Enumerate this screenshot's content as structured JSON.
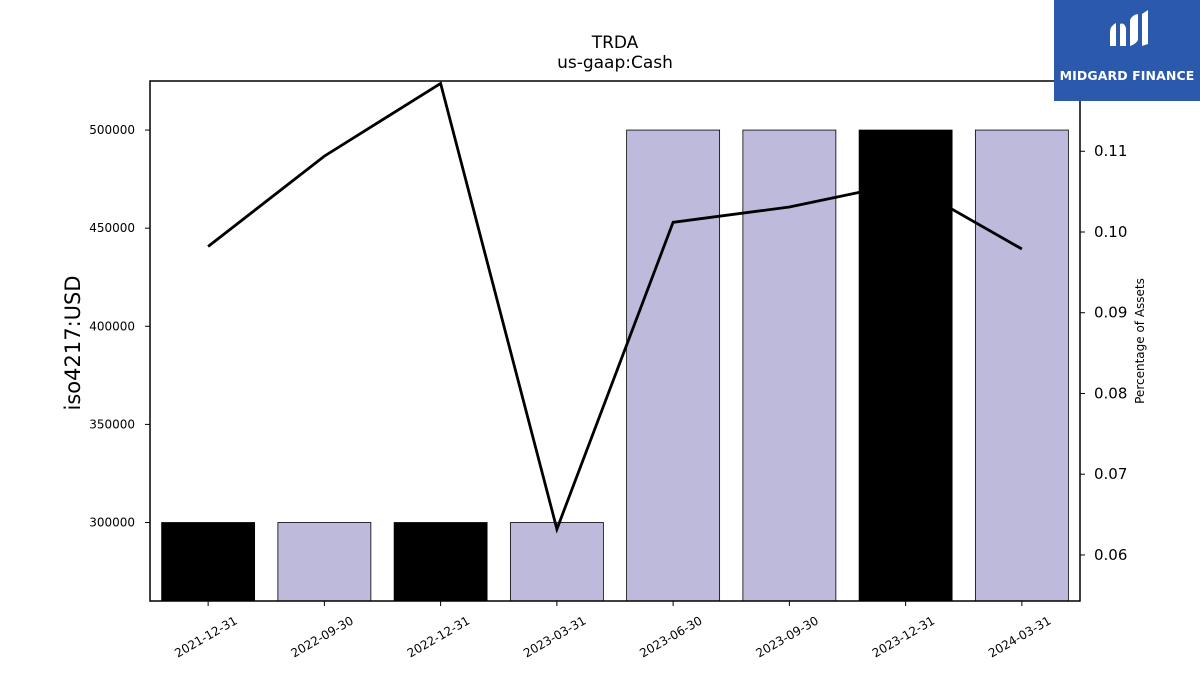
{
  "chart_data": {
    "type": "bar",
    "title": "TRDA",
    "subtitle": "us-gaap:Cash",
    "ylabel": "iso4217:USD",
    "y2label": "Percentage of Assets",
    "categories": [
      "2021-12-31",
      "2022-09-30",
      "2022-12-31",
      "2023-03-31",
      "2023-06-30",
      "2023-09-30",
      "2023-12-31",
      "2024-03-31"
    ],
    "values": [
      300000,
      300000,
      300000,
      300000,
      500000,
      500000,
      500000,
      500000
    ],
    "bar_colors": [
      "#000000",
      "#bdbadb",
      "#000000",
      "#bdbadb",
      "#bdbadb",
      "#bdbadb",
      "#000000",
      "#bdbadb"
    ],
    "line_values": [
      0.0982,
      0.1094,
      0.1184,
      0.0632,
      0.1012,
      0.1031,
      0.1061,
      0.0979
    ],
    "ylim": [
      260000,
      525000
    ],
    "y2lim": [
      0.0543,
      0.1187
    ],
    "yticks": [
      300000,
      350000,
      400000,
      450000,
      500000
    ],
    "y2ticks": [
      0.06,
      0.07,
      0.08,
      0.09,
      0.1,
      0.11
    ],
    "line_color": "#000000",
    "grid": false
  },
  "logo": {
    "text": "MIDGARD FINANCE",
    "background": "#2b59ac"
  }
}
